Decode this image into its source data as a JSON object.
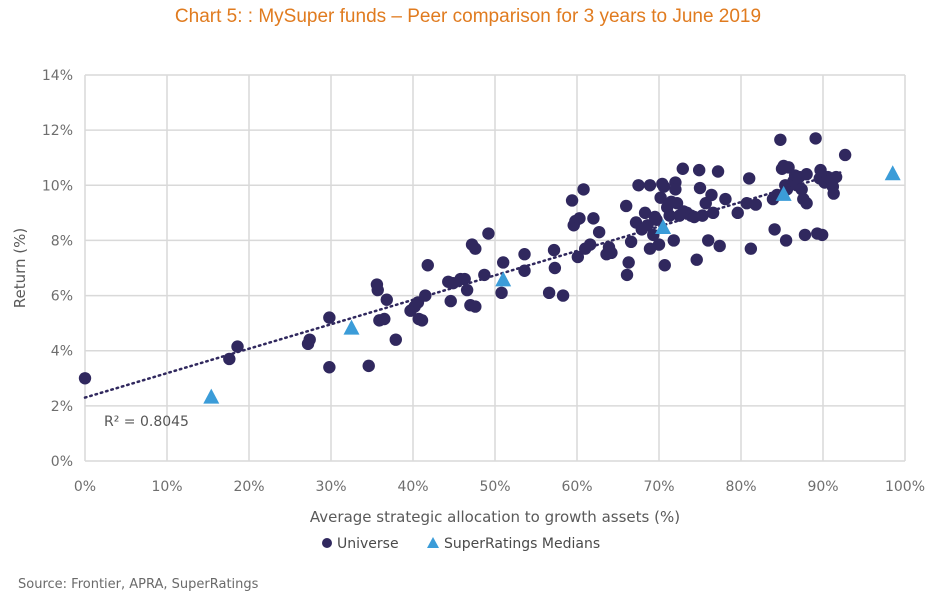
{
  "title": "Chart 5: : MySuper funds – Peer comparison for 3 years to June 2019",
  "source": "Source: Frontier, APRA, SuperRatings",
  "colors": {
    "title": "#e07b1f",
    "universe": "#30285e",
    "medians": "#3b9cd8",
    "trend": "#30285e",
    "grid": "#d9d9d9"
  },
  "chart_data": {
    "type": "scatter",
    "title": "Chart 5: : MySuper funds – Peer comparison for 3 years to June 2019",
    "xlabel": "Average strategic allocation to growth assets (%)",
    "ylabel": "Return (%)",
    "xlim": [
      0,
      100
    ],
    "ylim": [
      0,
      14
    ],
    "xticks": [
      "0%",
      "10%",
      "20%",
      "30%",
      "40%",
      "50%",
      "60%",
      "70%",
      "80%",
      "90%",
      "100%"
    ],
    "yticks": [
      "0%",
      "2%",
      "4%",
      "6%",
      "8%",
      "10%",
      "12%",
      "14%"
    ],
    "grid": true,
    "legend_position": "bottom",
    "annotation": "R² = 0.8045",
    "trendline": {
      "type": "linear",
      "x": [
        0,
        92.5
      ],
      "y": [
        2.3,
        10.5
      ],
      "style": "dotted"
    },
    "series": [
      {
        "name": "Universe",
        "marker": "circle",
        "points": [
          [
            0,
            3.0
          ],
          [
            17.6,
            3.7
          ],
          [
            18.6,
            4.15
          ],
          [
            27.2,
            4.25
          ],
          [
            27.4,
            4.4
          ],
          [
            29.8,
            5.2
          ],
          [
            29.8,
            3.4
          ],
          [
            34.6,
            3.45
          ],
          [
            35.6,
            6.4
          ],
          [
            35.7,
            6.2
          ],
          [
            35.9,
            5.1
          ],
          [
            36.5,
            5.15
          ],
          [
            36.8,
            5.85
          ],
          [
            37.9,
            4.4
          ],
          [
            39.7,
            5.45
          ],
          [
            40.2,
            5.6
          ],
          [
            40.6,
            5.75
          ],
          [
            40.7,
            5.15
          ],
          [
            41.1,
            5.1
          ],
          [
            41.8,
            7.1
          ],
          [
            41.5,
            6.0
          ],
          [
            44.3,
            6.5
          ],
          [
            44.6,
            5.8
          ],
          [
            44.9,
            6.45
          ],
          [
            45.8,
            6.6
          ],
          [
            46.3,
            6.6
          ],
          [
            46.6,
            6.2
          ],
          [
            47.0,
            5.65
          ],
          [
            47.2,
            7.85
          ],
          [
            47.6,
            7.7
          ],
          [
            47.6,
            5.6
          ],
          [
            48.7,
            6.75
          ],
          [
            49.2,
            8.25
          ],
          [
            50.8,
            6.1
          ],
          [
            51.0,
            7.2
          ],
          [
            53.6,
            7.5
          ],
          [
            53.6,
            6.9
          ],
          [
            56.6,
            6.1
          ],
          [
            57.2,
            7.65
          ],
          [
            57.3,
            7.0
          ],
          [
            58.3,
            6.0
          ],
          [
            59.4,
            9.45
          ],
          [
            59.6,
            8.55
          ],
          [
            59.8,
            8.7
          ],
          [
            60.1,
            7.4
          ],
          [
            60.3,
            8.8
          ],
          [
            60.8,
            9.85
          ],
          [
            61.0,
            7.7
          ],
          [
            61.6,
            7.85
          ],
          [
            62.0,
            8.8
          ],
          [
            62.7,
            8.3
          ],
          [
            63.6,
            7.5
          ],
          [
            63.9,
            7.75
          ],
          [
            64.2,
            7.55
          ],
          [
            66.0,
            9.25
          ],
          [
            66.1,
            6.75
          ],
          [
            66.3,
            7.2
          ],
          [
            66.6,
            7.95
          ],
          [
            67.2,
            8.65
          ],
          [
            67.5,
            10.0
          ],
          [
            67.9,
            8.4
          ],
          [
            68.3,
            9.0
          ],
          [
            68.6,
            8.55
          ],
          [
            68.9,
            10.0
          ],
          [
            68.9,
            7.7
          ],
          [
            69.3,
            8.2
          ],
          [
            69.5,
            8.85
          ],
          [
            69.7,
            8.75
          ],
          [
            70.0,
            7.85
          ],
          [
            70.2,
            9.55
          ],
          [
            70.4,
            10.05
          ],
          [
            70.6,
            9.95
          ],
          [
            70.7,
            7.1
          ],
          [
            71.0,
            9.2
          ],
          [
            71.3,
            8.9
          ],
          [
            71.5,
            9.4
          ],
          [
            71.8,
            8.0
          ],
          [
            72.0,
            10.1
          ],
          [
            72.0,
            9.85
          ],
          [
            72.2,
            9.35
          ],
          [
            72.5,
            8.9
          ],
          [
            72.9,
            10.6
          ],
          [
            73.0,
            9.05
          ],
          [
            73.4,
            9.0
          ],
          [
            73.9,
            8.9
          ],
          [
            74.3,
            8.85
          ],
          [
            74.6,
            7.3
          ],
          [
            74.9,
            10.55
          ],
          [
            75.0,
            9.9
          ],
          [
            75.3,
            8.9
          ],
          [
            75.7,
            9.35
          ],
          [
            76.0,
            8.0
          ],
          [
            76.4,
            9.65
          ],
          [
            76.6,
            9.0
          ],
          [
            77.2,
            10.5
          ],
          [
            77.4,
            7.8
          ],
          [
            78.1,
            9.5
          ],
          [
            79.6,
            9.0
          ],
          [
            80.7,
            9.35
          ],
          [
            81.0,
            10.25
          ],
          [
            81.2,
            7.7
          ],
          [
            81.8,
            9.3
          ],
          [
            83.9,
            9.5
          ],
          [
            84.1,
            8.4
          ],
          [
            84.4,
            9.65
          ],
          [
            84.8,
            11.65
          ],
          [
            85.0,
            10.6
          ],
          [
            85.2,
            10.7
          ],
          [
            85.4,
            10.0
          ],
          [
            85.5,
            8.0
          ],
          [
            85.6,
            9.85
          ],
          [
            85.8,
            10.65
          ],
          [
            86.4,
            10.15
          ],
          [
            86.6,
            10.35
          ],
          [
            86.8,
            10.0
          ],
          [
            87.1,
            10.3
          ],
          [
            87.4,
            9.85
          ],
          [
            87.6,
            9.5
          ],
          [
            87.8,
            8.2
          ],
          [
            88.0,
            10.4
          ],
          [
            88.0,
            9.35
          ],
          [
            89.1,
            11.7
          ],
          [
            89.3,
            8.25
          ],
          [
            89.6,
            10.25
          ],
          [
            89.7,
            10.55
          ],
          [
            89.9,
            8.2
          ],
          [
            90.2,
            10.1
          ],
          [
            90.6,
            10.3
          ],
          [
            91.0,
            10.2
          ],
          [
            91.2,
            9.95
          ],
          [
            91.3,
            9.7
          ],
          [
            91.6,
            10.3
          ],
          [
            92.7,
            11.1
          ]
        ]
      },
      {
        "name": "SuperRatings Medians",
        "marker": "triangle",
        "points": [
          [
            15.4,
            2.3
          ],
          [
            32.5,
            4.8
          ],
          [
            51.0,
            6.55
          ],
          [
            70.5,
            8.45
          ],
          [
            85.2,
            9.65
          ],
          [
            98.5,
            10.4
          ]
        ]
      }
    ]
  }
}
